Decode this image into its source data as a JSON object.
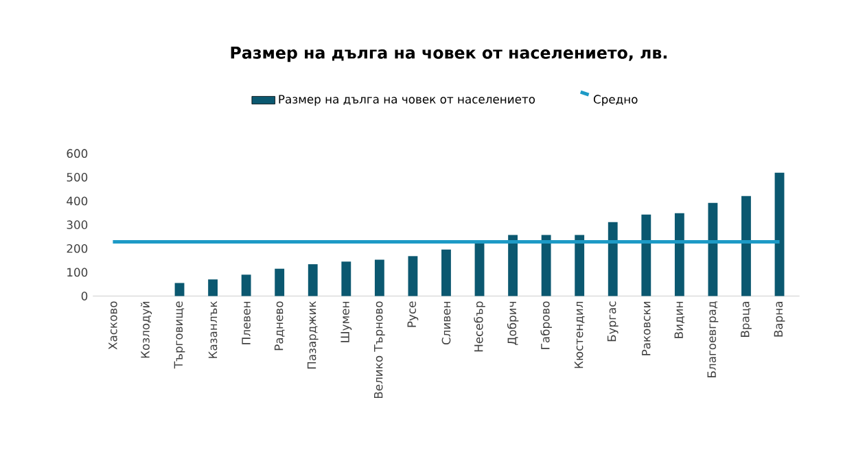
{
  "chart_data": {
    "type": "bar",
    "title": "Размер на дълга на човек от населението, лв.",
    "categories": [
      "Хасково",
      "Козлодуй",
      "Търговище",
      "Казанлък",
      "Плевен",
      "Раднево",
      "Пазарджик",
      "Шумен",
      "Велико Търново",
      "Русе",
      "Сливен",
      "Несебър",
      "Добрич",
      "Габрово",
      "Кюстендил",
      "Бургас",
      "Раковски",
      "Видин",
      "Благоевград",
      "Враца",
      "Варна"
    ],
    "series": [
      {
        "name": "Размер на дълга на човек от населението",
        "color": "#0b5870",
        "values": [
          0,
          0,
          55,
          70,
          90,
          115,
          134,
          145,
          153,
          168,
          196,
          226,
          257,
          257,
          257,
          311,
          343,
          349,
          392,
          421,
          519
        ]
      }
    ],
    "ref_lines": [
      {
        "axis": "y",
        "value": 228,
        "label": "Средно",
        "color": "#1d9ac6"
      }
    ],
    "ylim": [
      0,
      600
    ],
    "yticks": [
      0,
      100,
      200,
      300,
      400,
      500,
      600
    ],
    "legend": "top"
  }
}
